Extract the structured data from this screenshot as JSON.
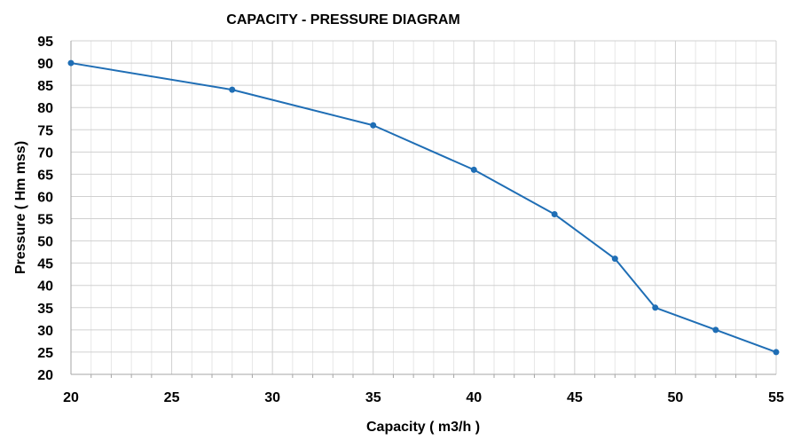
{
  "chart_data": {
    "type": "line",
    "title": "CAPACITY - PRESSURE DIAGRAM",
    "xlabel": "Capacity ( m3/h )",
    "ylabel": "Pressure ( Hm mss)",
    "xlim": [
      20,
      55
    ],
    "ylim": [
      20,
      95
    ],
    "x_ticks": [
      20,
      25,
      30,
      35,
      40,
      45,
      50,
      55
    ],
    "y_ticks": [
      20,
      25,
      30,
      35,
      40,
      45,
      50,
      55,
      60,
      65,
      70,
      75,
      80,
      85,
      90,
      95
    ],
    "grid": true,
    "legend": "none",
    "series": [
      {
        "color": "#1f6eb5",
        "x": [
          20,
          28,
          35,
          40,
          44,
          47,
          49,
          52,
          55
        ],
        "y": [
          90,
          84,
          76,
          66,
          56,
          46,
          35,
          30,
          25
        ]
      }
    ]
  }
}
